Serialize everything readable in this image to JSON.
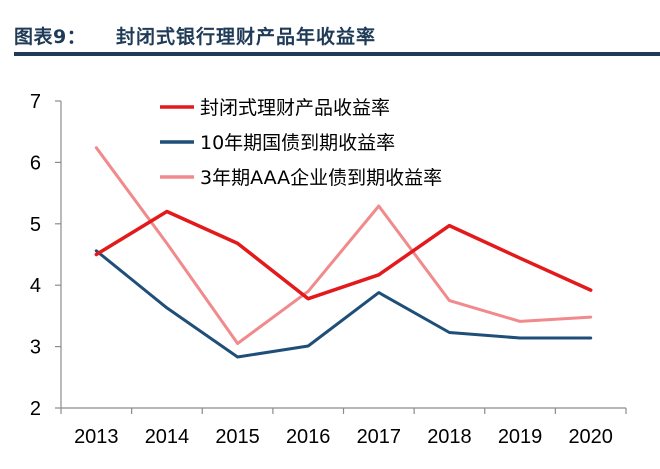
{
  "figure": {
    "label": "图表9：",
    "title": "封闭式银行理财产品年收益率"
  },
  "chart_data": {
    "type": "line",
    "x": [
      "2013",
      "2014",
      "2015",
      "2016",
      "2017",
      "2018",
      "2019",
      "2020"
    ],
    "ylim": [
      2,
      7
    ],
    "yticks": [
      2,
      3,
      4,
      5,
      6,
      7
    ],
    "ytick_labels": [
      "2",
      "3",
      "4",
      "5",
      "6",
      "7"
    ],
    "grid": false,
    "legend_position": "top-center",
    "series": [
      {
        "name": "封闭式理财产品收益率",
        "color": "#e31a1c",
        "values": [
          4.5,
          5.2,
          4.68,
          3.78,
          4.17,
          4.97,
          4.44,
          3.92
        ]
      },
      {
        "name": "10年期国债到期收益率",
        "color": "#1f4e79",
        "values": [
          4.56,
          3.63,
          2.83,
          3.01,
          3.88,
          3.23,
          3.14,
          3.14
        ]
      },
      {
        "name": "3年期AAA企业债到期收益率",
        "color": "#f08a8c",
        "values": [
          6.24,
          4.68,
          3.05,
          3.9,
          5.29,
          3.75,
          3.41,
          3.48
        ]
      }
    ]
  }
}
